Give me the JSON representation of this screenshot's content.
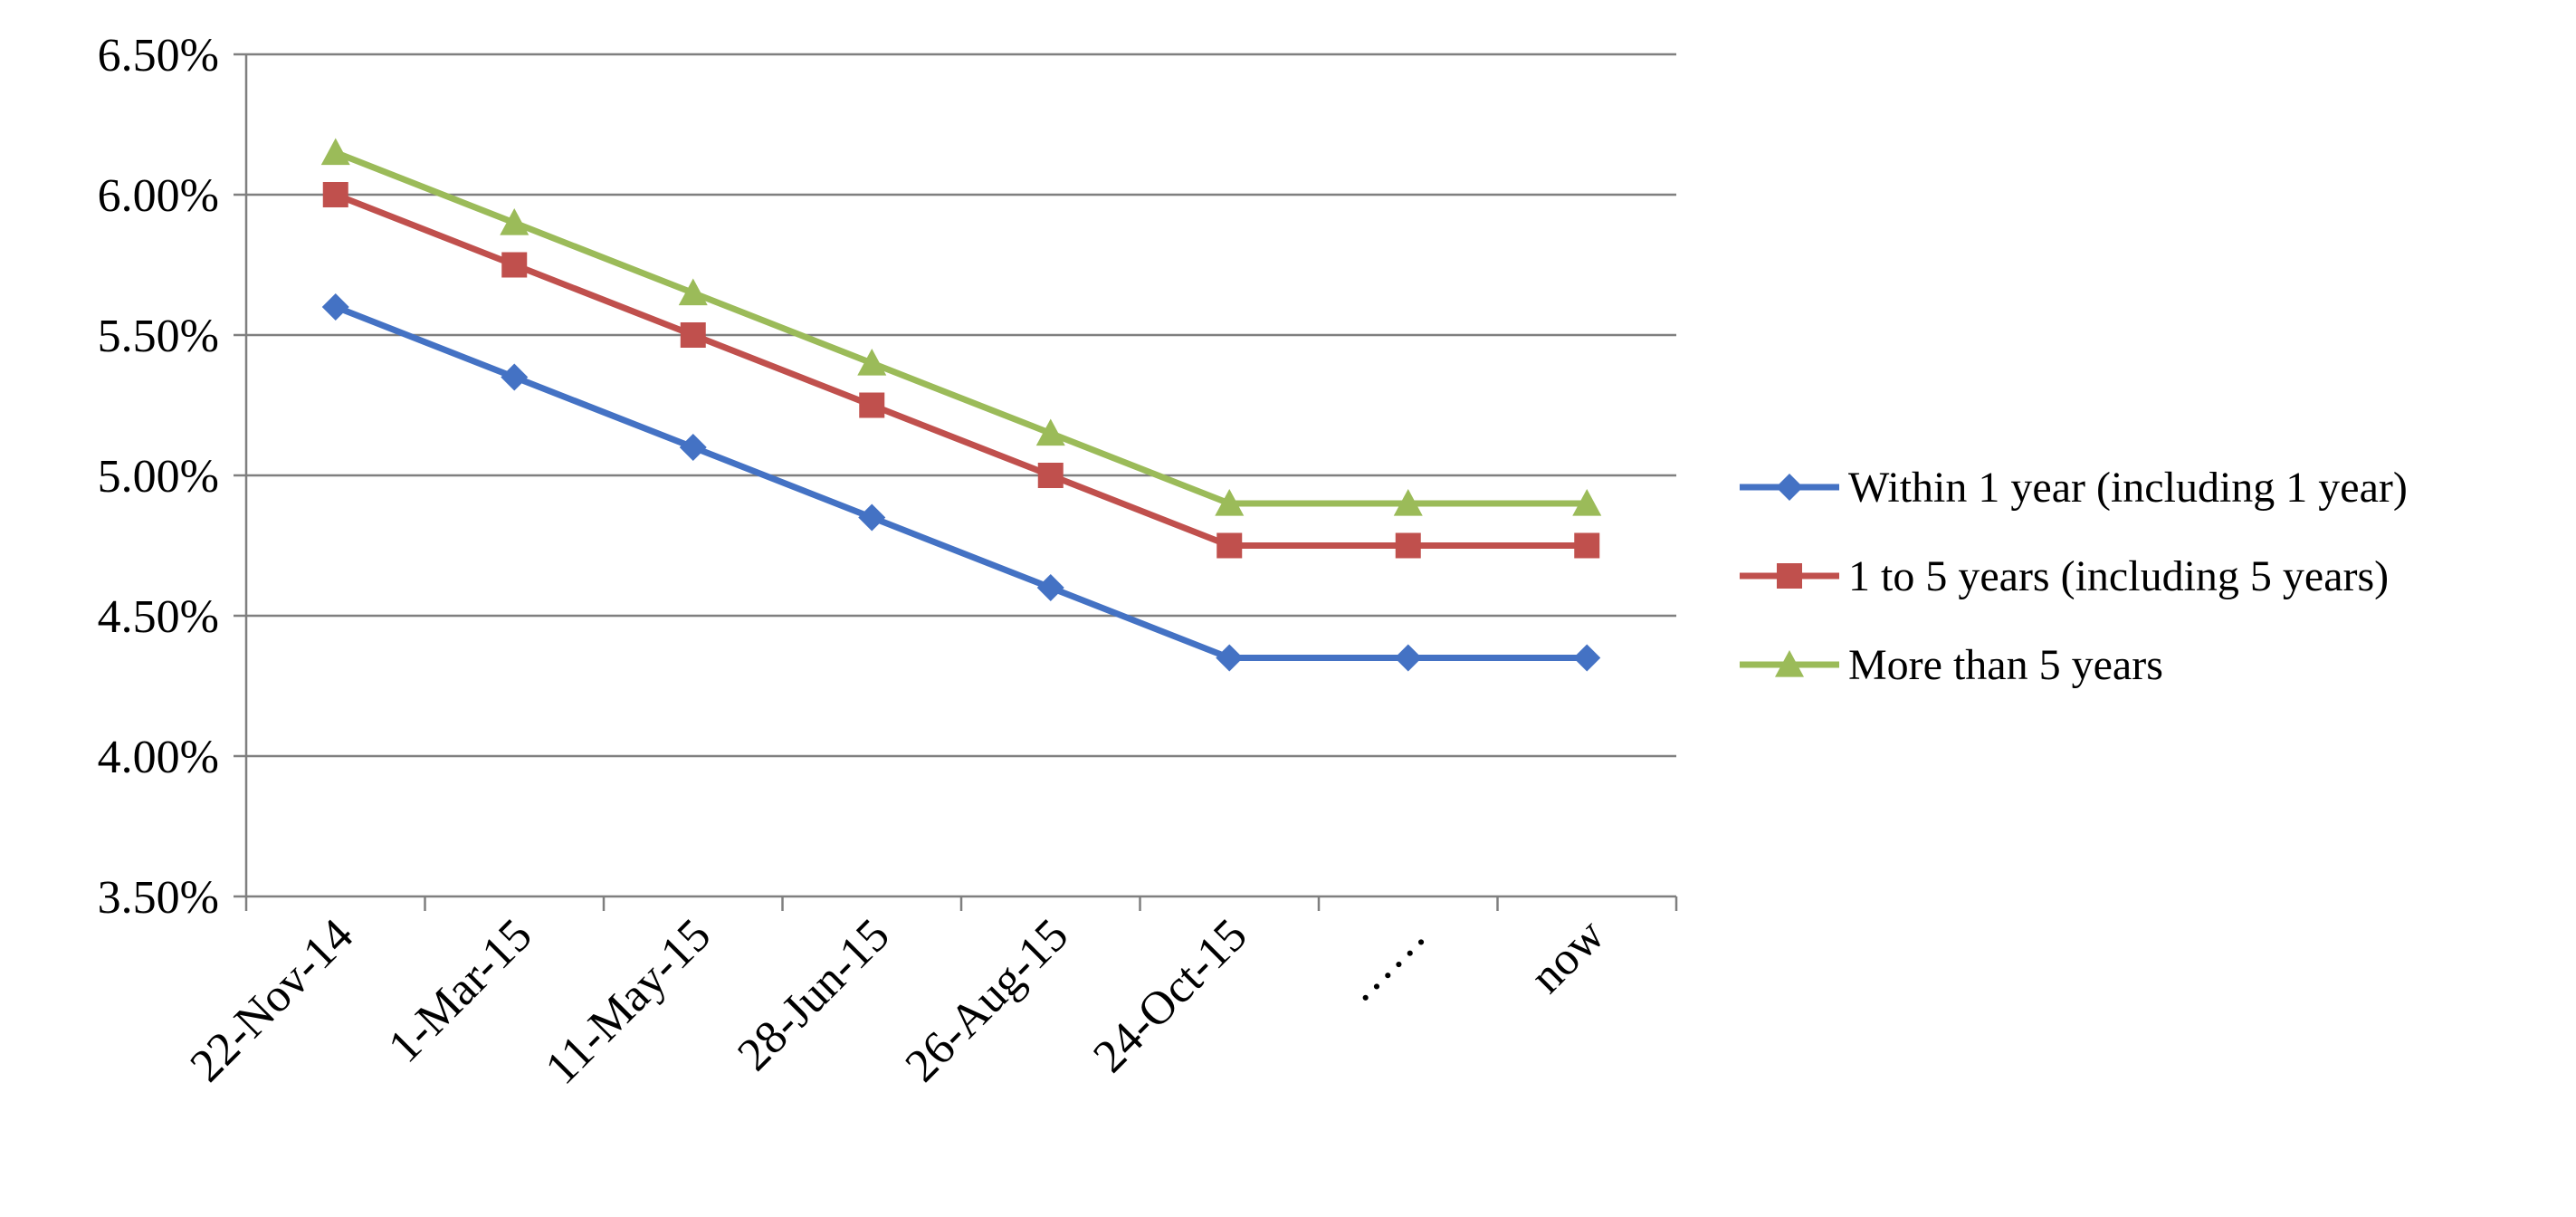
{
  "chart_data": {
    "type": "line",
    "title": "",
    "xlabel": "",
    "ylabel": "",
    "categories": [
      "22-Nov-14",
      "1-Mar-15",
      "11-May-15",
      "28-Jun-15",
      "26-Aug-15",
      "24-Oct-15",
      "……",
      "now"
    ],
    "y_tick_labels": [
      "3.50%",
      "4.00%",
      "4.50%",
      "5.00%",
      "5.50%",
      "6.00%",
      "6.50%"
    ],
    "ylim": [
      3.5,
      6.5
    ],
    "y_unit": "%",
    "grid": "horizontal",
    "legend_position": "right",
    "series": [
      {
        "name": "Within 1 year (including 1 year)",
        "color": "#4472C4",
        "marker": "diamond",
        "values": [
          5.6,
          5.35,
          5.1,
          4.85,
          4.6,
          4.35,
          4.35,
          4.35
        ]
      },
      {
        "name": "1 to 5 years (including 5 years)",
        "color": "#C0504D",
        "marker": "square",
        "values": [
          6.0,
          5.75,
          5.5,
          5.25,
          5.0,
          4.75,
          4.75,
          4.75
        ]
      },
      {
        "name": "More than 5 years",
        "color": "#9BBB59",
        "marker": "triangle",
        "values": [
          6.15,
          5.9,
          5.65,
          5.4,
          5.15,
          4.9,
          4.9,
          4.9
        ]
      }
    ]
  }
}
